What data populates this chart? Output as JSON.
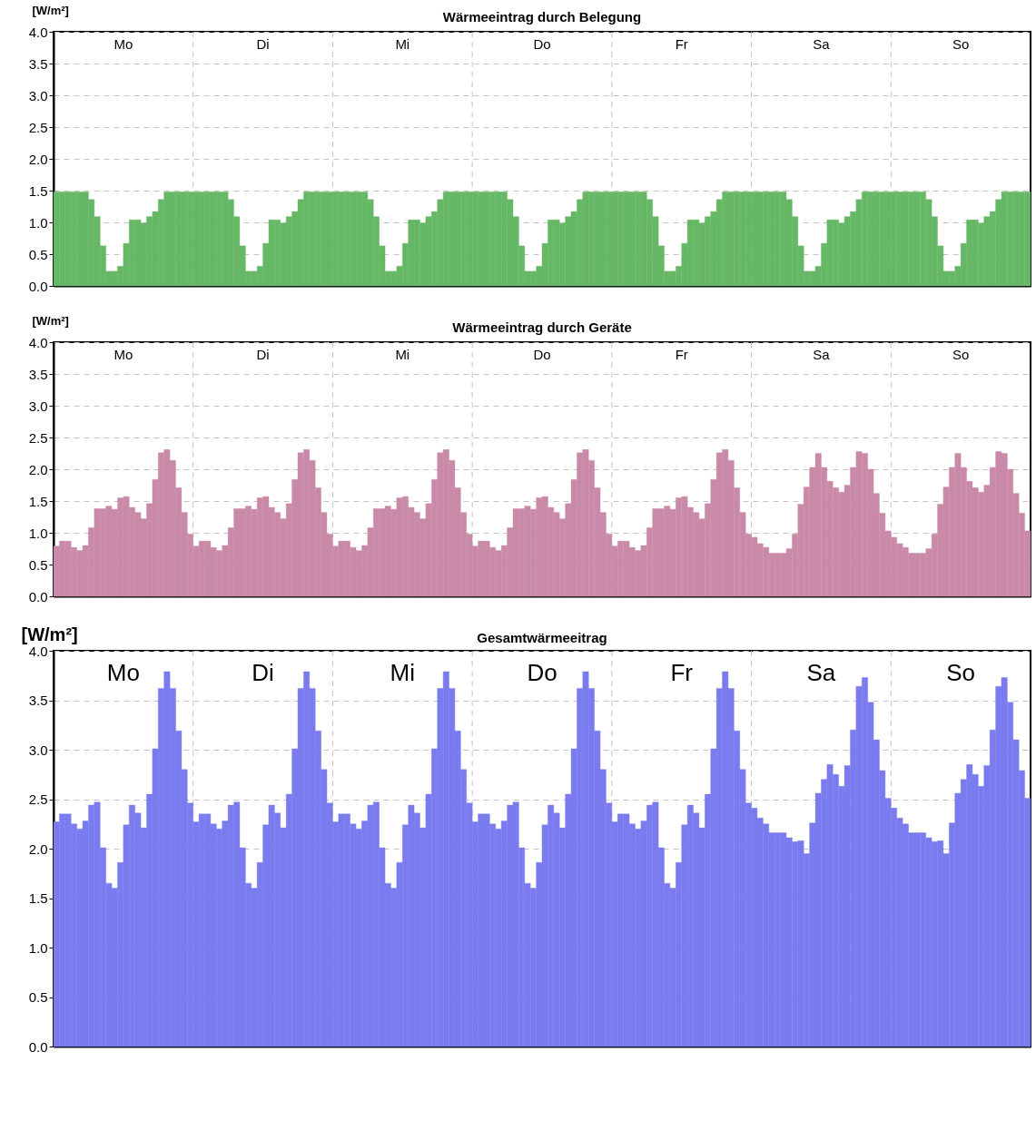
{
  "chart_data": [
    {
      "type": "bar",
      "title": "Wärmeeintrag durch Belegung",
      "ylabel": "[W/m²]",
      "color": "#66b866",
      "ylim": [
        0,
        4
      ],
      "yticks": [
        {
          "value": 0,
          "label": "0.0"
        },
        {
          "value": 0.5,
          "label": "0.5"
        },
        {
          "value": 1,
          "label": "1.0"
        },
        {
          "value": 1.5,
          "label": "1.5"
        },
        {
          "value": 2,
          "label": "2.0"
        },
        {
          "value": 2.5,
          "label": "2.5"
        },
        {
          "value": 3,
          "label": "3.0"
        },
        {
          "value": 3.5,
          "label": "3.5"
        },
        {
          "value": 4,
          "label": "4.0"
        }
      ],
      "grid": true,
      "tick_labels": "y",
      "annotations": [
        "Mo",
        "Di",
        "Mi",
        "Do",
        "Fr",
        "Sa",
        "So"
      ],
      "categories": [
        null,
        null,
        null,
        null,
        null,
        null,
        null,
        null,
        null,
        null,
        null,
        null,
        null,
        null,
        null,
        null,
        null,
        null,
        null,
        null,
        null,
        null,
        null,
        null,
        null,
        null,
        null,
        null,
        null,
        null,
        null,
        null,
        null,
        null,
        null,
        null,
        null,
        null,
        null,
        null,
        null,
        null,
        null,
        null,
        null,
        null,
        null,
        null,
        null,
        null,
        null,
        null,
        null,
        null,
        null,
        null,
        null,
        null,
        null,
        null,
        null,
        null,
        null,
        null,
        null,
        null,
        null,
        null,
        null,
        null,
        null,
        null,
        null,
        null,
        null,
        null,
        null,
        null,
        null,
        null,
        null,
        null,
        null,
        null,
        null,
        null,
        null,
        null,
        null,
        null,
        null,
        null,
        null,
        null,
        null,
        null,
        null,
        null,
        null,
        null,
        null,
        null,
        null,
        null,
        null,
        null,
        null,
        null,
        null,
        null,
        null,
        null,
        null,
        null,
        null,
        null,
        null,
        null,
        null,
        null,
        null,
        null,
        null,
        null,
        null,
        null,
        null,
        null,
        null,
        null,
        null,
        null,
        null,
        null,
        null,
        null,
        null,
        null,
        null,
        null,
        null,
        null,
        null,
        null,
        null,
        null,
        null,
        null,
        null,
        null,
        null,
        null,
        null,
        null,
        null,
        null,
        null,
        null,
        null,
        null,
        null,
        null,
        null,
        null,
        null,
        null,
        null,
        null
      ],
      "values": [
        1.48,
        1.48,
        1.48,
        1.48,
        1.48,
        1.48,
        1.36,
        1.09,
        0.63,
        0.23,
        0.23,
        0.31,
        0.67,
        1.04,
        1.04,
        0.99,
        1.09,
        1.17,
        1.36,
        1.48,
        1.48,
        1.48,
        1.48,
        1.48,
        1.48,
        1.48,
        1.48,
        1.48,
        1.48,
        1.48,
        1.36,
        1.09,
        0.63,
        0.23,
        0.23,
        0.31,
        0.67,
        1.04,
        1.04,
        0.99,
        1.09,
        1.17,
        1.36,
        1.48,
        1.48,
        1.48,
        1.48,
        1.48,
        1.48,
        1.48,
        1.48,
        1.48,
        1.48,
        1.48,
        1.36,
        1.09,
        0.63,
        0.23,
        0.23,
        0.31,
        0.67,
        1.04,
        1.04,
        0.99,
        1.09,
        1.17,
        1.36,
        1.48,
        1.48,
        1.48,
        1.48,
        1.48,
        1.48,
        1.48,
        1.48,
        1.48,
        1.48,
        1.48,
        1.36,
        1.09,
        0.63,
        0.23,
        0.23,
        0.31,
        0.67,
        1.04,
        1.04,
        0.99,
        1.09,
        1.17,
        1.36,
        1.48,
        1.48,
        1.48,
        1.48,
        1.48,
        1.48,
        1.48,
        1.48,
        1.48,
        1.48,
        1.48,
        1.36,
        1.09,
        0.63,
        0.23,
        0.23,
        0.31,
        0.67,
        1.04,
        1.04,
        0.99,
        1.09,
        1.17,
        1.36,
        1.48,
        1.48,
        1.48,
        1.48,
        1.48,
        1.48,
        1.48,
        1.48,
        1.48,
        1.48,
        1.48,
        1.36,
        1.09,
        0.63,
        0.23,
        0.23,
        0.31,
        0.67,
        1.04,
        1.04,
        0.99,
        1.09,
        1.17,
        1.36,
        1.48,
        1.48,
        1.48,
        1.48,
        1.48,
        1.48,
        1.48,
        1.48,
        1.48,
        1.48,
        1.48,
        1.36,
        1.09,
        0.63,
        0.23,
        0.23,
        0.31,
        0.67,
        1.04,
        1.04,
        0.99,
        1.09,
        1.17,
        1.36,
        1.48,
        1.48,
        1.48,
        1.48,
        1.48
      ]
    },
    {
      "type": "bar",
      "title": "Wärmeeintrag durch Geräte",
      "ylabel": "[W/m²]",
      "color": "#c98aa8",
      "ylim": [
        0,
        4
      ],
      "yticks": [
        {
          "value": 0,
          "label": "0.0"
        },
        {
          "value": 0.5,
          "label": "0.5"
        },
        {
          "value": 1,
          "label": "1.0"
        },
        {
          "value": 1.5,
          "label": "1.5"
        },
        {
          "value": 2,
          "label": "2.0"
        },
        {
          "value": 2.5,
          "label": "2.5"
        },
        {
          "value": 3,
          "label": "3.0"
        },
        {
          "value": 3.5,
          "label": "3.5"
        },
        {
          "value": 4,
          "label": "4.0"
        }
      ],
      "grid": true,
      "tick_labels": "y",
      "annotations": [
        "Mo",
        "Di",
        "Mi",
        "Do",
        "Fr",
        "Sa",
        "So"
      ],
      "categories": [
        null,
        null,
        null,
        null,
        null,
        null,
        null,
        null,
        null,
        null,
        null,
        null,
        null,
        null,
        null,
        null,
        null,
        null,
        null,
        null,
        null,
        null,
        null,
        null,
        null,
        null,
        null,
        null,
        null,
        null,
        null,
        null,
        null,
        null,
        null,
        null,
        null,
        null,
        null,
        null,
        null,
        null,
        null,
        null,
        null,
        null,
        null,
        null,
        null,
        null,
        null,
        null,
        null,
        null,
        null,
        null,
        null,
        null,
        null,
        null,
        null,
        null,
        null,
        null,
        null,
        null,
        null,
        null,
        null,
        null,
        null,
        null,
        null,
        null,
        null,
        null,
        null,
        null,
        null,
        null,
        null,
        null,
        null,
        null,
        null,
        null,
        null,
        null,
        null,
        null,
        null,
        null,
        null,
        null,
        null,
        null,
        null,
        null,
        null,
        null,
        null,
        null,
        null,
        null,
        null,
        null,
        null,
        null,
        null,
        null,
        null,
        null,
        null,
        null,
        null,
        null,
        null,
        null,
        null,
        null,
        null,
        null,
        null,
        null,
        null,
        null,
        null,
        null,
        null,
        null,
        null,
        null,
        null,
        null,
        null,
        null,
        null,
        null,
        null,
        null,
        null,
        null,
        null,
        null,
        null,
        null,
        null,
        null,
        null,
        null,
        null,
        null,
        null,
        null,
        null,
        null,
        null,
        null,
        null,
        null,
        null,
        null,
        null,
        null,
        null,
        null,
        null,
        null
      ],
      "values": [
        0.79,
        0.87,
        0.87,
        0.77,
        0.72,
        0.8,
        1.08,
        1.38,
        1.38,
        1.42,
        1.37,
        1.55,
        1.57,
        1.4,
        1.32,
        1.22,
        1.46,
        1.84,
        2.26,
        2.31,
        2.14,
        1.71,
        1.32,
        0.98,
        0.79,
        0.87,
        0.87,
        0.77,
        0.72,
        0.8,
        1.08,
        1.38,
        1.38,
        1.42,
        1.37,
        1.55,
        1.57,
        1.4,
        1.32,
        1.22,
        1.46,
        1.84,
        2.26,
        2.31,
        2.14,
        1.71,
        1.32,
        0.98,
        0.79,
        0.87,
        0.87,
        0.77,
        0.72,
        0.8,
        1.08,
        1.38,
        1.38,
        1.42,
        1.37,
        1.55,
        1.57,
        1.4,
        1.32,
        1.22,
        1.46,
        1.84,
        2.26,
        2.31,
        2.14,
        1.71,
        1.32,
        0.98,
        0.79,
        0.87,
        0.87,
        0.77,
        0.72,
        0.8,
        1.08,
        1.38,
        1.38,
        1.42,
        1.37,
        1.55,
        1.57,
        1.4,
        1.32,
        1.22,
        1.46,
        1.84,
        2.26,
        2.31,
        2.14,
        1.71,
        1.32,
        0.98,
        0.79,
        0.87,
        0.87,
        0.77,
        0.72,
        0.8,
        1.08,
        1.38,
        1.38,
        1.42,
        1.37,
        1.55,
        1.57,
        1.4,
        1.32,
        1.22,
        1.46,
        1.84,
        2.26,
        2.31,
        2.14,
        1.71,
        1.32,
        0.98,
        0.93,
        0.83,
        0.77,
        0.68,
        0.68,
        0.68,
        0.75,
        0.98,
        1.45,
        1.72,
        2.03,
        2.25,
        2.03,
        1.81,
        1.71,
        1.64,
        1.75,
        2.03,
        2.28,
        2.25,
        2.0,
        1.62,
        1.31,
        1.03,
        0.93,
        0.83,
        0.77,
        0.68,
        0.68,
        0.68,
        0.75,
        0.98,
        1.45,
        1.72,
        2.03,
        2.25,
        2.03,
        1.81,
        1.71,
        1.64,
        1.75,
        2.03,
        2.28,
        2.25,
        2.0,
        1.62,
        1.31,
        1.03
      ]
    },
    {
      "type": "bar",
      "title": "Gesamtwärmeeitrag",
      "ylabel": "[W/m²]",
      "color": "#7b7bf0",
      "ylim": [
        0,
        4
      ],
      "yticks": [
        {
          "value": 0,
          "label": "0.0"
        },
        {
          "value": 0.5,
          "label": "0.5"
        },
        {
          "value": 1,
          "label": "1.0"
        },
        {
          "value": 1.5,
          "label": "1.5"
        },
        {
          "value": 2,
          "label": "2.0"
        },
        {
          "value": 2.5,
          "label": "2.5"
        },
        {
          "value": 3,
          "label": "3.0"
        },
        {
          "value": 3.5,
          "label": "3.5"
        },
        {
          "value": 4,
          "label": "4.0"
        }
      ],
      "grid": true,
      "tick_labels": "y",
      "annotations": [
        "Mo",
        "Di",
        "Mi",
        "Do",
        "Fr",
        "Sa",
        "So"
      ],
      "categories": [
        null,
        null,
        null,
        null,
        null,
        null,
        null,
        null,
        null,
        null,
        null,
        null,
        null,
        null,
        null,
        null,
        null,
        null,
        null,
        null,
        null,
        null,
        null,
        null,
        null,
        null,
        null,
        null,
        null,
        null,
        null,
        null,
        null,
        null,
        null,
        null,
        null,
        null,
        null,
        null,
        null,
        null,
        null,
        null,
        null,
        null,
        null,
        null,
        null,
        null,
        null,
        null,
        null,
        null,
        null,
        null,
        null,
        null,
        null,
        null,
        null,
        null,
        null,
        null,
        null,
        null,
        null,
        null,
        null,
        null,
        null,
        null,
        null,
        null,
        null,
        null,
        null,
        null,
        null,
        null,
        null,
        null,
        null,
        null,
        null,
        null,
        null,
        null,
        null,
        null,
        null,
        null,
        null,
        null,
        null,
        null,
        null,
        null,
        null,
        null,
        null,
        null,
        null,
        null,
        null,
        null,
        null,
        null,
        null,
        null,
        null,
        null,
        null,
        null,
        null,
        null,
        null,
        null,
        null,
        null,
        null,
        null,
        null,
        null,
        null,
        null,
        null,
        null,
        null,
        null,
        null,
        null,
        null,
        null,
        null,
        null,
        null,
        null,
        null,
        null,
        null,
        null,
        null,
        null,
        null,
        null,
        null,
        null,
        null,
        null,
        null,
        null,
        null,
        null,
        null,
        null,
        null,
        null,
        null,
        null,
        null,
        null,
        null,
        null,
        null,
        null,
        null,
        null
      ],
      "values": [
        2.27,
        2.35,
        2.35,
        2.25,
        2.2,
        2.28,
        2.44,
        2.47,
        2.01,
        1.65,
        1.6,
        1.86,
        2.24,
        2.44,
        2.36,
        2.21,
        2.55,
        3.01,
        3.62,
        3.79,
        3.62,
        3.19,
        2.8,
        2.46,
        2.27,
        2.35,
        2.35,
        2.25,
        2.2,
        2.28,
        2.44,
        2.47,
        2.01,
        1.65,
        1.6,
        1.86,
        2.24,
        2.44,
        2.36,
        2.21,
        2.55,
        3.01,
        3.62,
        3.79,
        3.62,
        3.19,
        2.8,
        2.46,
        2.27,
        2.35,
        2.35,
        2.25,
        2.2,
        2.28,
        2.44,
        2.47,
        2.01,
        1.65,
        1.6,
        1.86,
        2.24,
        2.44,
        2.36,
        2.21,
        2.55,
        3.01,
        3.62,
        3.79,
        3.62,
        3.19,
        2.8,
        2.46,
        2.27,
        2.35,
        2.35,
        2.25,
        2.2,
        2.28,
        2.44,
        2.47,
        2.01,
        1.65,
        1.6,
        1.86,
        2.24,
        2.44,
        2.36,
        2.21,
        2.55,
        3.01,
        3.62,
        3.79,
        3.62,
        3.19,
        2.8,
        2.46,
        2.27,
        2.35,
        2.35,
        2.25,
        2.2,
        2.28,
        2.44,
        2.47,
        2.01,
        1.65,
        1.6,
        1.86,
        2.24,
        2.44,
        2.36,
        2.21,
        2.55,
        3.01,
        3.62,
        3.79,
        3.62,
        3.19,
        2.8,
        2.46,
        2.41,
        2.31,
        2.25,
        2.16,
        2.16,
        2.16,
        2.11,
        2.07,
        2.08,
        1.95,
        2.26,
        2.56,
        2.7,
        2.85,
        2.75,
        2.63,
        2.84,
        3.2,
        3.64,
        3.73,
        3.48,
        3.1,
        2.79,
        2.51,
        2.41,
        2.31,
        2.25,
        2.16,
        2.16,
        2.16,
        2.11,
        2.07,
        2.08,
        1.95,
        2.26,
        2.56,
        2.7,
        2.85,
        2.75,
        2.63,
        2.84,
        3.2,
        3.64,
        3.73,
        3.48,
        3.1,
        2.79,
        2.51
      ]
    }
  ]
}
